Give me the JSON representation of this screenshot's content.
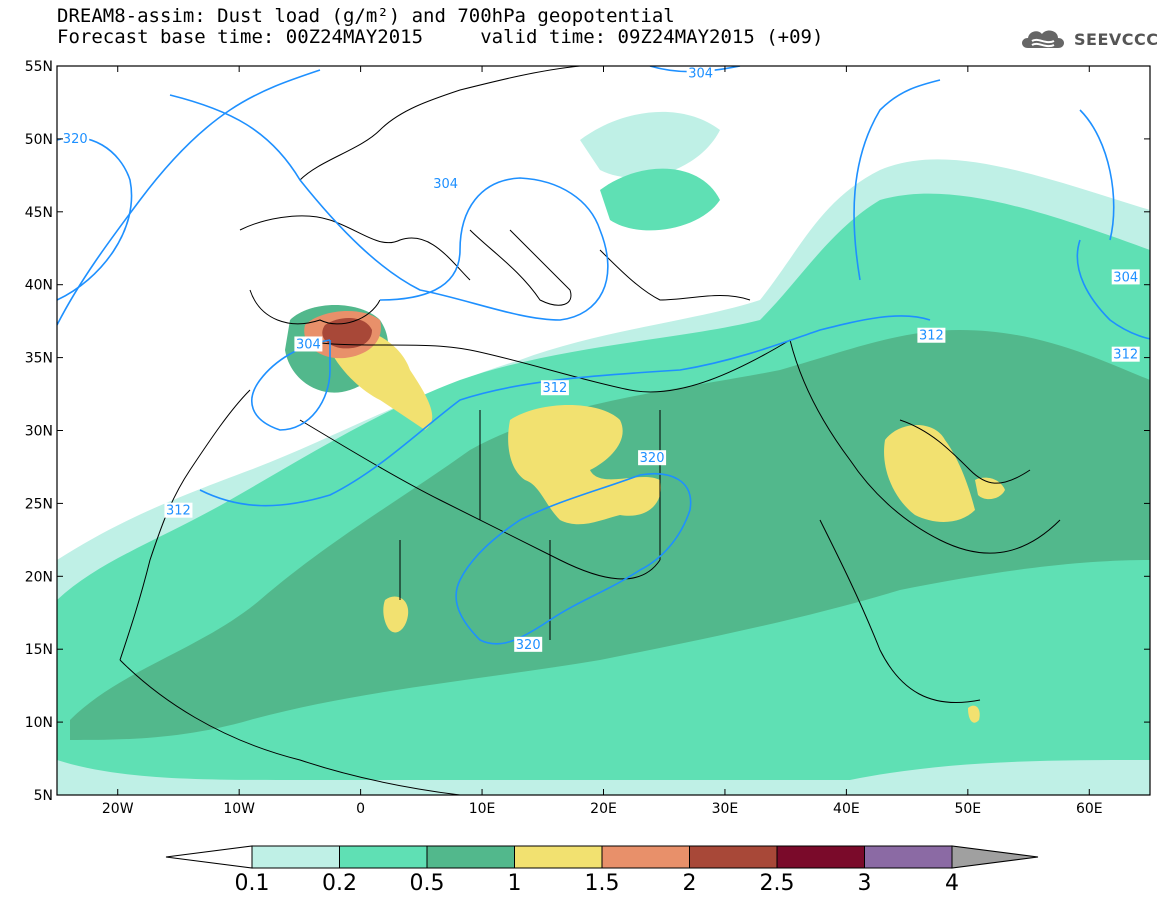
{
  "title": {
    "line1": "DREAM8-assim: Dust load (g/m²) and 700hPa geopotential",
    "line2": "Forecast base time: 00Z24MAY2015     valid time: 09Z24MAY2015 (+09)"
  },
  "logo": {
    "text": "SEEVCCC",
    "icon": "cloud-icon"
  },
  "colors": {
    "bin1": "#bff0e6",
    "bin2": "#5fe0b4",
    "bin3": "#52b88c",
    "bin4": "#f2e170",
    "bin5": "#e8906a",
    "bin6": "#a84838",
    "bin7": "#7a0a2a",
    "bin8": "#8b6aa4",
    "bin9": "#a0a0a0",
    "contour": "#1e90ff"
  },
  "chart_data": {
    "type": "map",
    "lon_range": [
      -25,
      65
    ],
    "lat_range": [
      5,
      55
    ],
    "y_ticks": [
      {
        "value": 55,
        "label": "55N"
      },
      {
        "value": 50,
        "label": "50N"
      },
      {
        "value": 45,
        "label": "45N"
      },
      {
        "value": 40,
        "label": "40N"
      },
      {
        "value": 35,
        "label": "35N"
      },
      {
        "value": 30,
        "label": "30N"
      },
      {
        "value": 25,
        "label": "25N"
      },
      {
        "value": 20,
        "label": "20N"
      },
      {
        "value": 15,
        "label": "15N"
      },
      {
        "value": 10,
        "label": "10N"
      },
      {
        "value": 5,
        "label": "5N"
      }
    ],
    "x_ticks": [
      {
        "value": -20,
        "label": "20W"
      },
      {
        "value": -10,
        "label": "10W"
      },
      {
        "value": 0,
        "label": "0"
      },
      {
        "value": 10,
        "label": "10E"
      },
      {
        "value": 20,
        "label": "20E"
      },
      {
        "value": 30,
        "label": "30E"
      },
      {
        "value": 40,
        "label": "40E"
      },
      {
        "value": 50,
        "label": "50E"
      },
      {
        "value": 60,
        "label": "60E"
      }
    ],
    "contour_labels": [
      {
        "text": "320",
        "lon": -23.5,
        "lat": 50
      },
      {
        "text": "304",
        "lon": 28,
        "lat": 54.5
      },
      {
        "text": "304",
        "lon": 7,
        "lat": 46.9
      },
      {
        "text": "304",
        "lon": 63,
        "lat": 40.5
      },
      {
        "text": "304",
        "lon": -4.3,
        "lat": 35.9
      },
      {
        "text": "312",
        "lon": 47,
        "lat": 36.5
      },
      {
        "text": "312",
        "lon": 16,
        "lat": 32.9
      },
      {
        "text": "312",
        "lon": -15,
        "lat": 24.5
      },
      {
        "text": "312",
        "lon": 63,
        "lat": 35.2
      },
      {
        "text": "320",
        "lon": 24,
        "lat": 28.1
      },
      {
        "text": "320",
        "lon": 13.8,
        "lat": 15.3
      }
    ],
    "colorbar": {
      "ticks": [
        "0.1",
        "0.2",
        "0.5",
        "1",
        "1.5",
        "2",
        "2.5",
        "3",
        "4"
      ]
    }
  }
}
